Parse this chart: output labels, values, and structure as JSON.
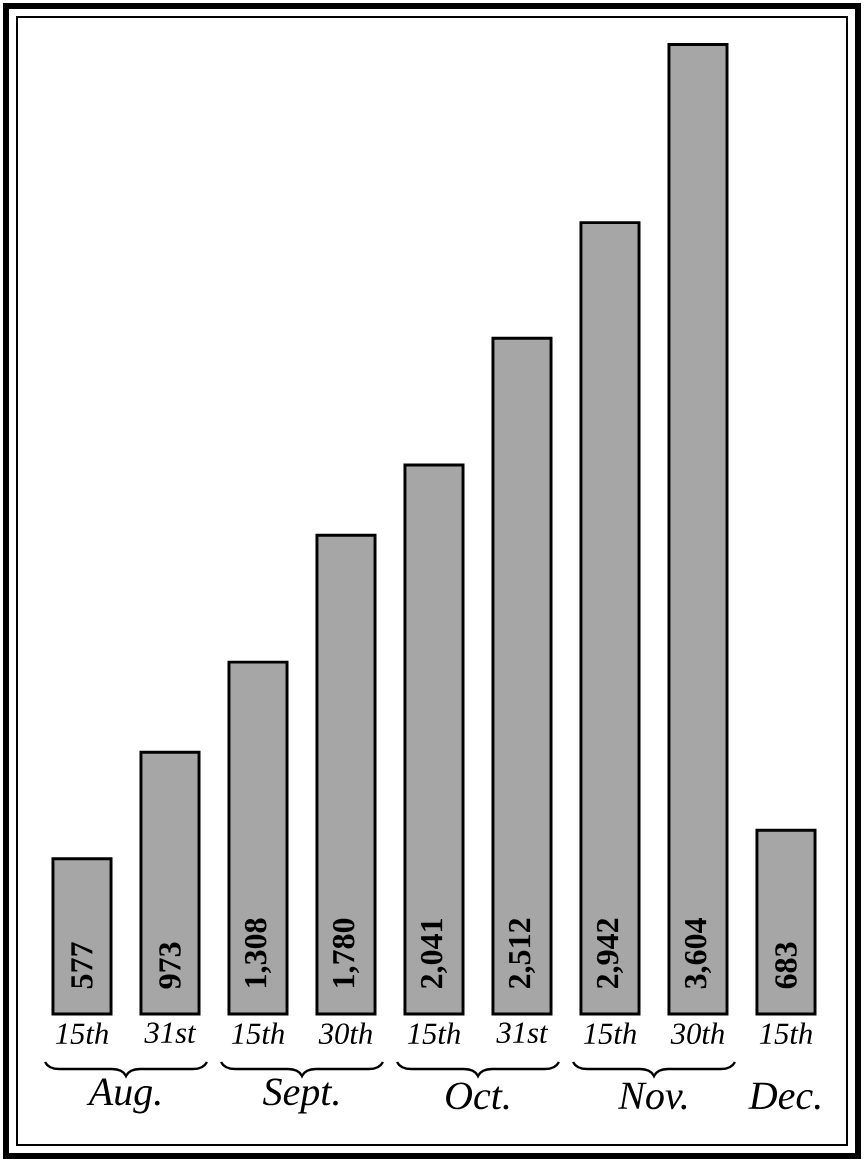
{
  "chart_data": {
    "type": "bar",
    "categories": [
      "15th",
      "31st",
      "15th",
      "30th",
      "15th",
      "31st",
      "15th",
      "30th",
      "15th"
    ],
    "values": [
      577,
      973,
      1308,
      1780,
      2041,
      2512,
      2942,
      3604,
      683
    ],
    "value_labels": [
      "577",
      "973",
      "1,308",
      "1,780",
      "2,041",
      "2,512",
      "2,942",
      "3,604",
      "683"
    ],
    "color": "#a6a6a6",
    "annotations": [
      "Aug.",
      "Sept.",
      "Oct.",
      "Nov.",
      "Dec."
    ]
  }
}
